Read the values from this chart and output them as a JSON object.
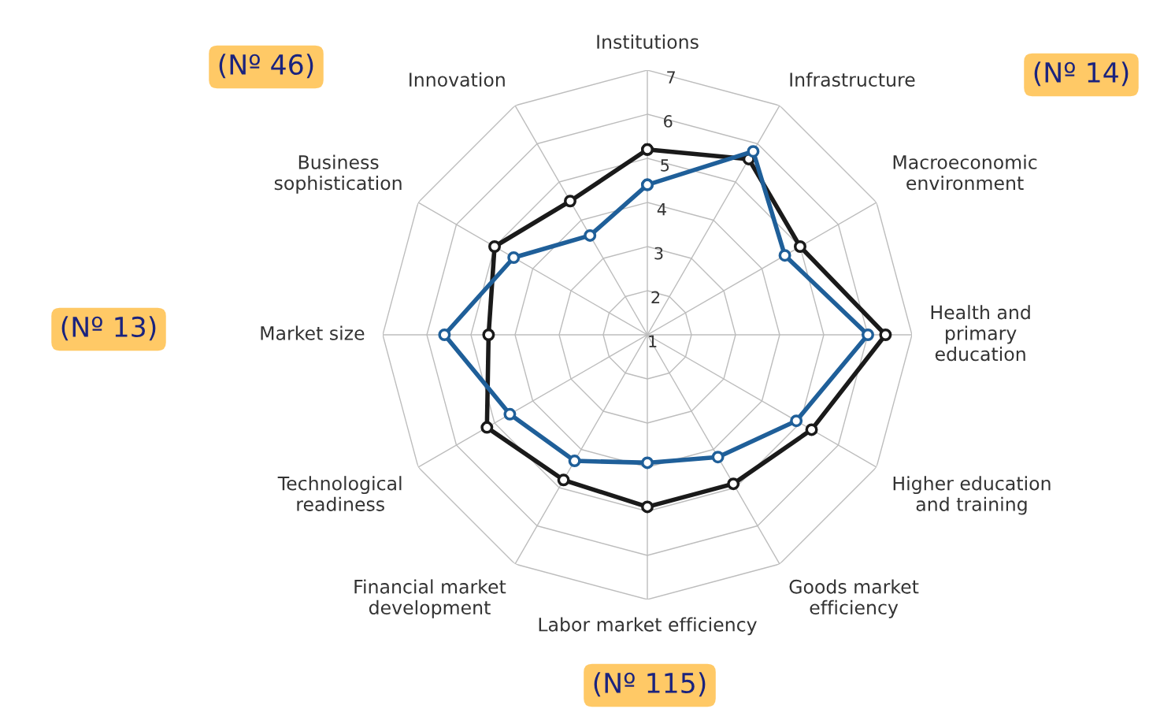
{
  "chart_data": {
    "type": "radar",
    "categories": [
      "Institutions",
      "Infrastructure",
      "Macroeconomic\nenvironment",
      "Health and\nprimary\neducation",
      "Higher education\nand training",
      "Goods market\nefficiency",
      "Labor market efficiency",
      "Financial market\ndevelopment",
      "Technological\nreadiness",
      "Market size",
      "Business\nsophistication",
      "Innovation"
    ],
    "series": [
      {
        "color": "#1a1a1a",
        "values": [
          5.2,
          5.6,
          5.0,
          6.4,
          5.3,
          4.9,
          4.9,
          4.8,
          5.2,
          4.6,
          5.0,
          4.5
        ]
      },
      {
        "color": "#1f5f99",
        "values": [
          4.4,
          5.8,
          4.6,
          6.0,
          4.9,
          4.2,
          3.9,
          4.3,
          4.6,
          5.6,
          4.5,
          3.6
        ]
      }
    ],
    "ylim": [
      1,
      7
    ],
    "yticks": [
      1,
      2,
      3,
      4,
      5,
      6,
      7
    ],
    "grid": true,
    "marker": "circle",
    "line_style": "solid",
    "annotations": [
      "(Nº 46)",
      "(Nº 14)",
      "(Nº 13)",
      "(Nº 115)"
    ]
  }
}
